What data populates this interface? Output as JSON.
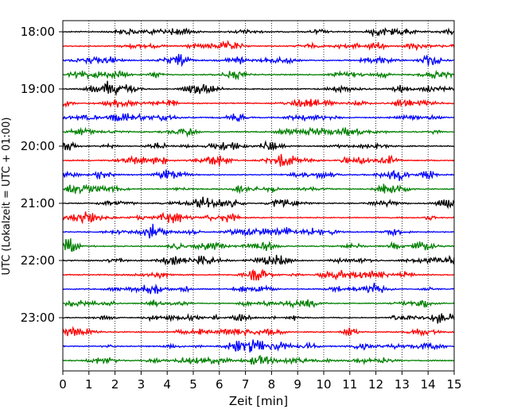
{
  "chart_data": {
    "type": "line",
    "xlabel": "Zeit  [min]",
    "ylabel": "UTC (Lokalzeit = UTC + 01:00)",
    "xlim": [
      0,
      15
    ],
    "x_ticks": [
      "0",
      "1",
      "2",
      "3",
      "4",
      "5",
      "6",
      "7",
      "8",
      "9",
      "10",
      "11",
      "12",
      "13",
      "14",
      "15"
    ],
    "y_ticks": [
      "18:00",
      "19:00",
      "20:00",
      "21:00",
      "22:00",
      "23:00"
    ],
    "trace_interval_min": 15,
    "grid": "vertical dotted",
    "trace_colors": [
      "#000000",
      "#ff0000",
      "#0000ff",
      "#008000"
    ],
    "trace_starts": [
      "18:00",
      "18:15",
      "18:30",
      "18:45",
      "19:00",
      "19:15",
      "19:30",
      "19:45",
      "20:00",
      "20:15",
      "20:30",
      "20:45",
      "21:00",
      "21:15",
      "21:30",
      "21:45",
      "22:00",
      "22:15",
      "22:30",
      "22:45",
      "23:00",
      "23:15",
      "23:30",
      "23:45"
    ]
  }
}
